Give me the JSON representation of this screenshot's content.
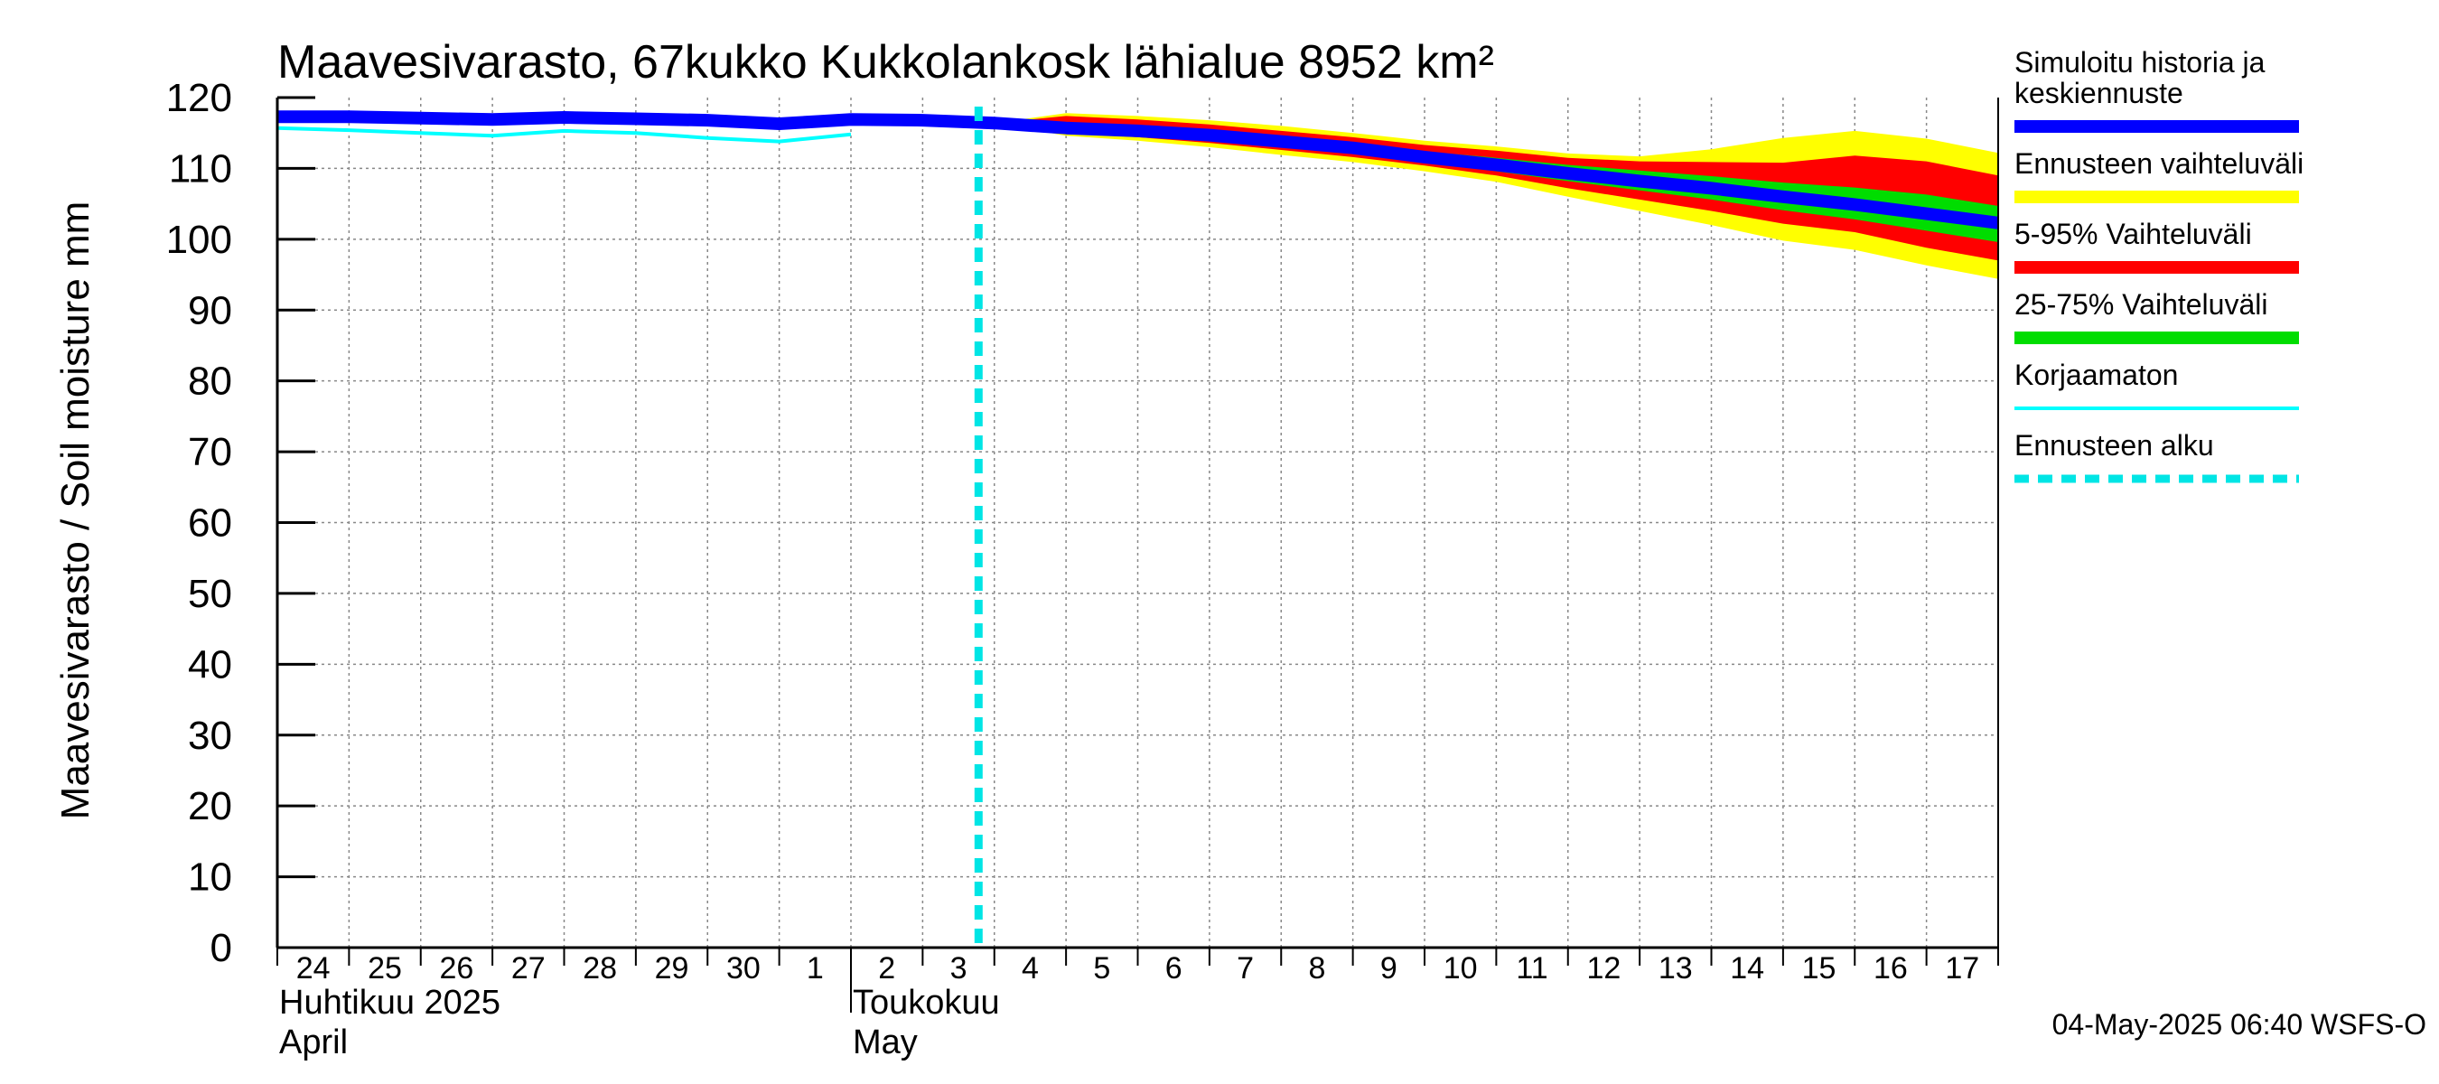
{
  "chart_data": {
    "type": "area",
    "title": "Maavesivarasto, 67kukko Kukkolankosk lähialue 8952 km²",
    "ylabel": "Maavesivarasto / Soil moisture   mm",
    "ylim": [
      0,
      120
    ],
    "yticks": [
      0,
      10,
      20,
      30,
      40,
      50,
      60,
      70,
      80,
      90,
      100,
      110,
      120
    ],
    "xlim": [
      "2025-04-24",
      "2025-05-18"
    ],
    "grid": true,
    "xtick_labels": [
      "24",
      "25",
      "26",
      "27",
      "28",
      "29",
      "30",
      "1",
      "2",
      "3",
      "4",
      "5",
      "6",
      "7",
      "8",
      "9",
      "10",
      "11",
      "12",
      "13",
      "14",
      "15",
      "16",
      "17"
    ],
    "month_labels": [
      {
        "line1": "Huhtikuu  2025",
        "line2": "April",
        "date": "2025-04-24"
      },
      {
        "line1": "Toukokuu",
        "line2": "May",
        "date": "2025-05-02"
      }
    ],
    "forecast_start": "2025-05-04",
    "timestamp": "04-May-2025 06:40 WSFS-O",
    "legend_position": "right",
    "colors": {
      "history": "#0000ff",
      "range": "#ffff00",
      "p5_95": "#ff0000",
      "p25_75": "#00dd00",
      "uncorrected": "#00ffff",
      "forecast_start": "#00e5e5"
    },
    "legend": [
      {
        "key": "history",
        "lines": [
          "Simuloitu historia ja",
          "keskiennuste"
        ]
      },
      {
        "key": "range",
        "lines": [
          "Ennusteen vaihteluväli"
        ]
      },
      {
        "key": "p5_95",
        "lines": [
          "5-95% Vaihteluväli"
        ]
      },
      {
        "key": "p25_75",
        "lines": [
          "25-75% Vaihteluväli"
        ]
      },
      {
        "key": "uncorrected",
        "lines": [
          "Korjaamaton"
        ]
      },
      {
        "key": "forecast_start",
        "lines": [
          "Ennusteen alku"
        ]
      }
    ],
    "series": [
      {
        "key": "history",
        "x": [
          "2025-04-24",
          "2025-04-25",
          "2025-04-26",
          "2025-04-27",
          "2025-04-28",
          "2025-04-29",
          "2025-04-30",
          "2025-05-01",
          "2025-05-02",
          "2025-05-03",
          "2025-05-04",
          "2025-05-05",
          "2025-05-06",
          "2025-05-07",
          "2025-05-08",
          "2025-05-09",
          "2025-05-10",
          "2025-05-11",
          "2025-05-12",
          "2025-05-13",
          "2025-05-14",
          "2025-05-15",
          "2025-05-16",
          "2025-05-17",
          "2025-05-18"
        ],
        "values": [
          117.3,
          117.3,
          117.1,
          116.9,
          117.2,
          117.0,
          116.8,
          116.3,
          116.9,
          116.8,
          116.4,
          115.7,
          115.3,
          114.7,
          113.8,
          112.9,
          111.6,
          110.5,
          109.3,
          108.2,
          107.2,
          106.0,
          104.9,
          103.6,
          102.3
        ]
      },
      {
        "key": "uncorrected",
        "x": [
          "2025-04-24",
          "2025-04-25",
          "2025-04-26",
          "2025-04-27",
          "2025-04-28",
          "2025-04-29",
          "2025-04-30",
          "2025-05-01",
          "2025-05-02"
        ],
        "values": [
          115.7,
          115.4,
          115.0,
          114.6,
          115.3,
          115.0,
          114.3,
          113.8,
          114.8
        ]
      }
    ],
    "bands": [
      {
        "key": "range",
        "x": [
          "2025-05-04",
          "2025-05-05",
          "2025-05-06",
          "2025-05-07",
          "2025-05-08",
          "2025-05-09",
          "2025-05-10",
          "2025-05-11",
          "2025-05-12",
          "2025-05-13",
          "2025-05-14",
          "2025-05-15",
          "2025-05-16",
          "2025-05-17",
          "2025-05-18"
        ],
        "upper": [
          116.4,
          117.8,
          117.4,
          116.8,
          116.0,
          115.0,
          113.9,
          113.1,
          112.1,
          111.7,
          112.7,
          114.3,
          115.3,
          114.2,
          112.2
        ],
        "lower": [
          116.4,
          114.6,
          113.9,
          113.0,
          111.9,
          110.9,
          109.6,
          108.1,
          106.0,
          104.0,
          102.0,
          99.8,
          98.5,
          96.3,
          94.4
        ]
      },
      {
        "key": "p5_95",
        "x": [
          "2025-05-04",
          "2025-05-05",
          "2025-05-06",
          "2025-05-07",
          "2025-05-08",
          "2025-05-09",
          "2025-05-10",
          "2025-05-11",
          "2025-05-12",
          "2025-05-13",
          "2025-05-14",
          "2025-05-15",
          "2025-05-16",
          "2025-05-17",
          "2025-05-18"
        ],
        "upper": [
          116.4,
          117.4,
          116.9,
          116.2,
          115.3,
          114.4,
          113.3,
          112.5,
          111.5,
          111.0,
          110.9,
          110.8,
          111.8,
          111.0,
          109.0
        ],
        "lower": [
          116.4,
          115.0,
          114.4,
          113.6,
          112.6,
          111.6,
          110.4,
          109.0,
          107.2,
          105.6,
          104.0,
          102.2,
          101.0,
          98.8,
          97.0
        ]
      },
      {
        "key": "p25_75",
        "x": [
          "2025-05-04",
          "2025-05-05",
          "2025-05-06",
          "2025-05-07",
          "2025-05-08",
          "2025-05-09",
          "2025-05-10",
          "2025-05-11",
          "2025-05-12",
          "2025-05-13",
          "2025-05-14",
          "2025-05-15",
          "2025-05-16",
          "2025-05-17",
          "2025-05-18"
        ],
        "upper": [
          116.4,
          116.2,
          115.8,
          115.2,
          114.4,
          113.6,
          112.4,
          111.5,
          110.5,
          109.7,
          108.9,
          108.0,
          107.3,
          106.3,
          104.7
        ],
        "lower": [
          116.4,
          115.2,
          114.8,
          114.1,
          113.2,
          112.3,
          111.0,
          109.6,
          108.2,
          106.9,
          105.6,
          104.1,
          102.8,
          101.2,
          99.6
        ]
      }
    ]
  }
}
